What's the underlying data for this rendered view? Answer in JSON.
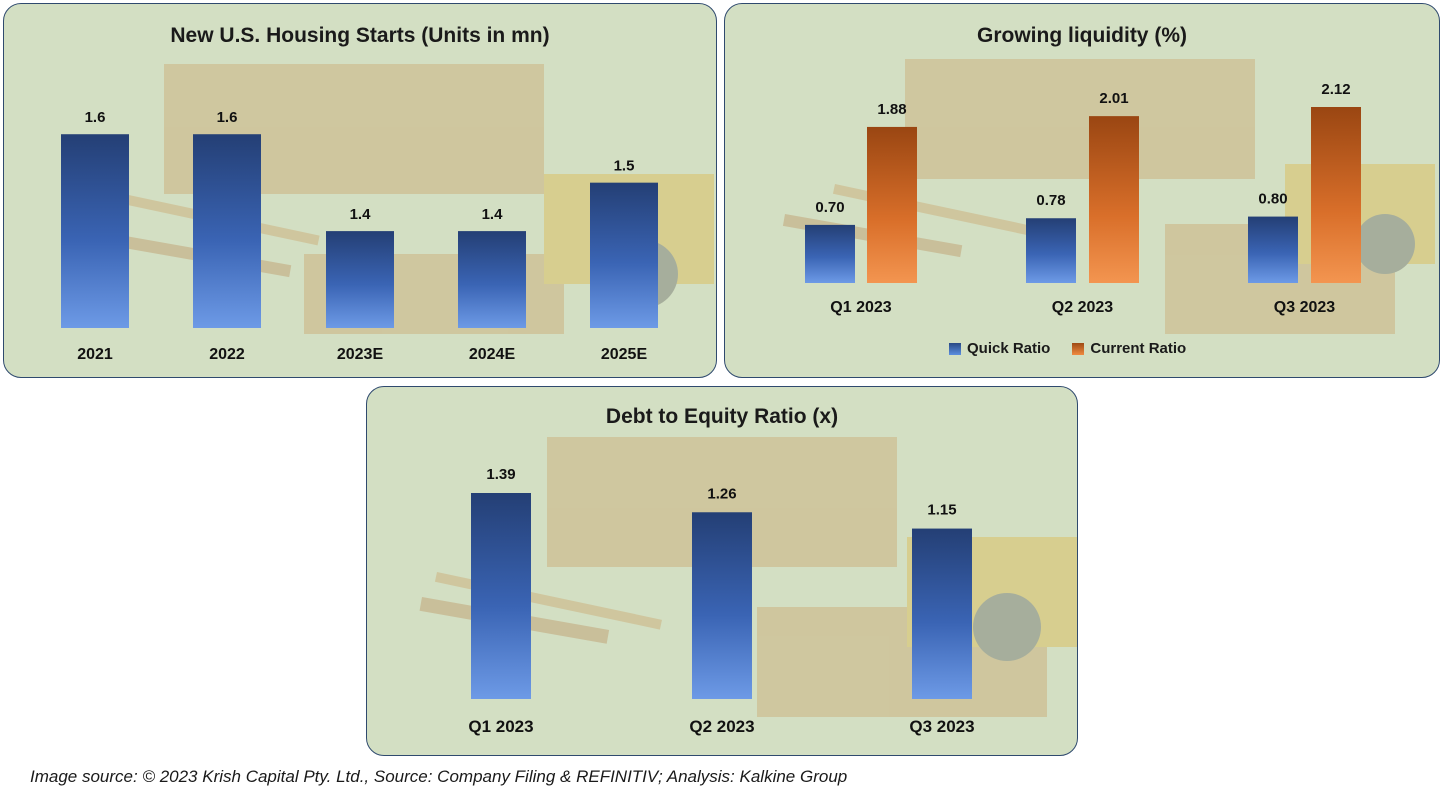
{
  "chart_data": [
    {
      "type": "bar",
      "title": "New U.S. Housing Starts (Units in mn)",
      "categories": [
        "2021",
        "2022",
        "2023E",
        "2024E",
        "2025E"
      ],
      "values": [
        1.6,
        1.6,
        1.4,
        1.4,
        1.5
      ],
      "value_labels": [
        "1.6",
        "1.6",
        "1.4",
        "1.4",
        "1.5"
      ],
      "ylim": [
        1.2,
        1.65
      ]
    },
    {
      "type": "bar",
      "title": "Growing liquidity (%)",
      "categories": [
        "Q1 2023",
        "Q2 2023",
        "Q3 2023"
      ],
      "series": [
        {
          "name": "Quick Ratio",
          "values": [
            0.7,
            0.78,
            0.8
          ],
          "labels": [
            "0.70",
            "0.78",
            "0.80"
          ]
        },
        {
          "name": "Current Ratio",
          "values": [
            1.88,
            2.01,
            2.12
          ],
          "labels": [
            "1.88",
            "2.01",
            "2.12"
          ]
        }
      ],
      "ylim": [
        0,
        2.2
      ]
    },
    {
      "type": "bar",
      "title": "Debt to Equity Ratio (x)",
      "categories": [
        "Q1 2023",
        "Q2 2023",
        "Q3 2023"
      ],
      "values": [
        1.39,
        1.26,
        1.15
      ],
      "value_labels": [
        "1.39",
        "1.26",
        "1.15"
      ],
      "ylim": [
        0,
        1.45
      ]
    }
  ],
  "colors": {
    "blue_top": "#2a4a85",
    "blue_bottom": "#5b8ee0",
    "orange_top": "#9e4a14",
    "orange_bottom": "#f08a40"
  },
  "legend": {
    "quick": "Quick Ratio",
    "current": "Current Ratio"
  },
  "footer": "Image source: © 2023 Krish Capital Pty. Ltd., Source: Company Filing & REFINITIV; Analysis: Kalkine Group"
}
